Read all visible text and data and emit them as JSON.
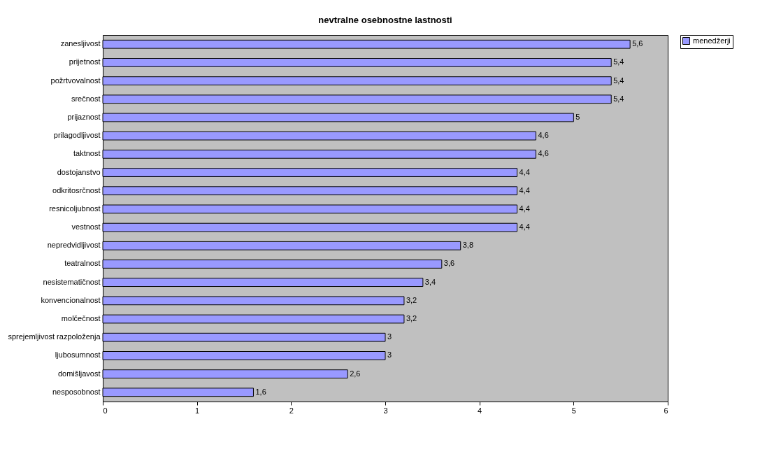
{
  "chart_data": {
    "type": "bar",
    "orientation": "horizontal",
    "title": "nevtralne osebnostne lastnosti",
    "categories": [
      "zanesljivost",
      "prijetnost",
      "požrtvovalnost",
      "srečnost",
      "prijaznost",
      "prilagodljivost",
      "taktnost",
      "dostojanstvo",
      "odkritosrčnost",
      "resnicoljubnost",
      "vestnost",
      "nepredvidljivost",
      "teatralnost",
      "nesistematičnost",
      "konvencionalnost",
      "molčečnost",
      "sprejemljivost razpoloženja",
      "ljubosumnost",
      "domišljavost",
      "nesposobnost"
    ],
    "series": [
      {
        "name": "menedžerji",
        "color": "#9999ff",
        "values": [
          5.6,
          5.4,
          5.4,
          5.4,
          5,
          4.6,
          4.6,
          4.4,
          4.4,
          4.4,
          4.4,
          3.8,
          3.6,
          3.4,
          3.2,
          3.2,
          3,
          3,
          2.6,
          1.6
        ],
        "value_labels": [
          "5,6",
          "5,4",
          "5,4",
          "5,4",
          "5",
          "4,6",
          "4,6",
          "4,4",
          "4,4",
          "4,4",
          "4,4",
          "3,8",
          "3,6",
          "3,4",
          "3,2",
          "3,2",
          "3",
          "3",
          "2,6",
          "1,6"
        ]
      }
    ],
    "xlim": [
      0,
      6
    ],
    "xticks": [
      0,
      1,
      2,
      3,
      4,
      5,
      6
    ],
    "grid": false,
    "legend": "right"
  }
}
